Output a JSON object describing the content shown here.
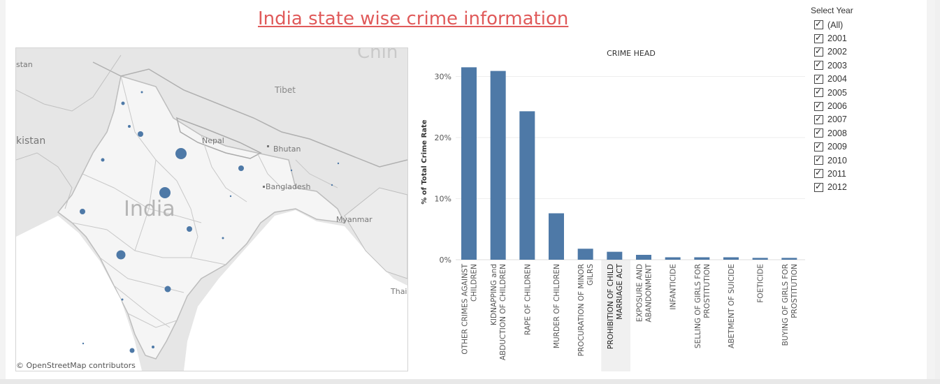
{
  "page": {
    "title": "India state wise crime information"
  },
  "map": {
    "attribution": "© OpenStreetMap contributors",
    "labels": {
      "china": "Chin",
      "pakistan_top": "stan",
      "tibet": "Tibet",
      "pakistan": "kistan",
      "nepal": "Nepal",
      "bhutan": "Bhutan",
      "bangladesh": "Bangladesh",
      "india": "India",
      "myanmar": "Myanmar",
      "thai": "Thai"
    }
  },
  "filter": {
    "title": "Select Year",
    "options": [
      "(All)",
      "2001",
      "2002",
      "2003",
      "2004",
      "2005",
      "2006",
      "2007",
      "2008",
      "2009",
      "2010",
      "2011",
      "2012"
    ]
  },
  "colors": {
    "bar": "#4e79a7",
    "title": "#e05a5a",
    "highlight": "#f0f0f0"
  },
  "chart_data": {
    "type": "bar",
    "title": "CRIME HEAD",
    "xlabel": "",
    "ylabel": "% of Total Crime Rate",
    "ylim": [
      0,
      32
    ],
    "yticks": [
      "0%",
      "10%",
      "20%",
      "30%"
    ],
    "ytick_values": [
      0,
      10,
      20,
      30
    ],
    "highlighted_category": 5,
    "categories": [
      [
        "OTHER CRIMES AGAINST",
        "CHILDREN"
      ],
      [
        "KIDNAPPING and",
        "ABDUCTION OF CHILDREN"
      ],
      [
        "RAPE OF CHILDREN"
      ],
      [
        "MURDER OF CHILDREN"
      ],
      [
        "PROCURATION OF MINOR",
        "GILRS"
      ],
      [
        "PROHIBITION OF CHILD",
        "MARRIAGE ACT"
      ],
      [
        "EXPOSURE AND",
        "ABANDONMENT"
      ],
      [
        "INFANTICIDE"
      ],
      [
        "SELLING OF GIRLS FOR",
        "PROSTITUTION"
      ],
      [
        "ABETMENT OF SUICIDE"
      ],
      [
        "FOETICIDE"
      ],
      [
        "BUYING OF GIRLS FOR",
        "PROSTITUTION"
      ]
    ],
    "values": [
      31.5,
      30.9,
      24.3,
      7.6,
      1.8,
      1.3,
      0.8,
      0.4,
      0.4,
      0.4,
      0.3,
      0.3
    ]
  }
}
